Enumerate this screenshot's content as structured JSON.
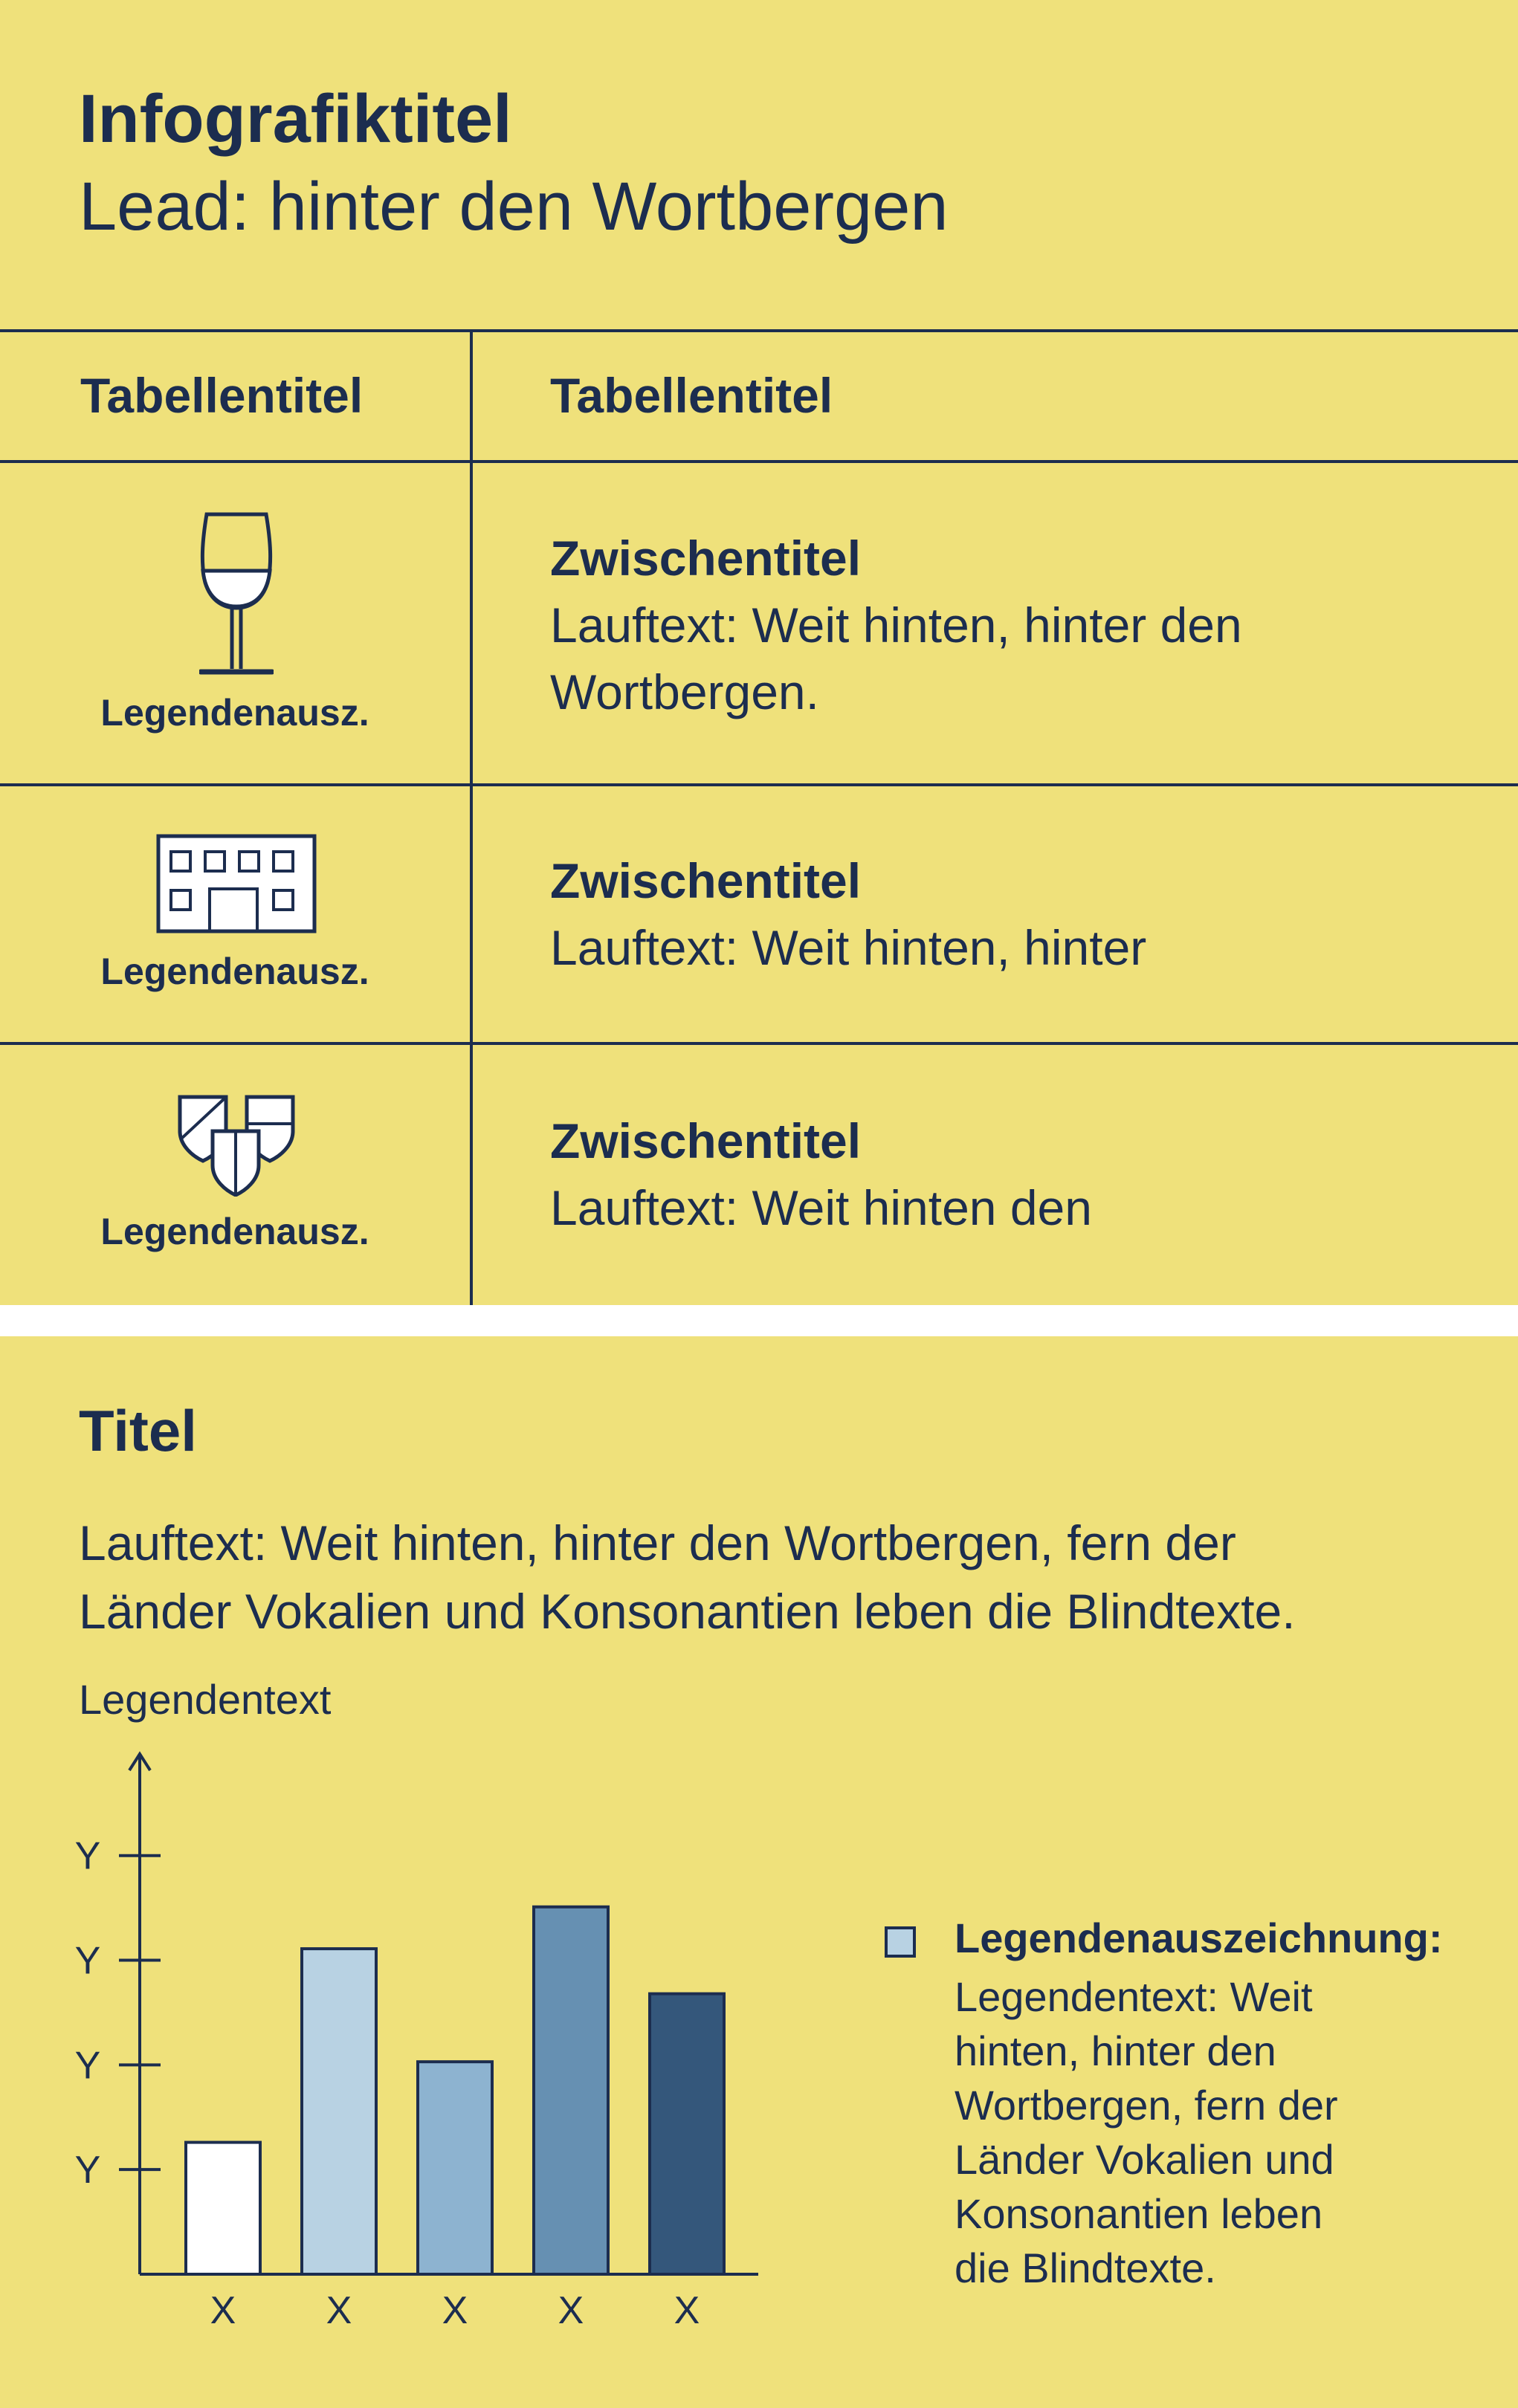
{
  "header": {
    "title": "Infografiktitel",
    "lead": "Lead: hinter den Wortbergen"
  },
  "table": {
    "columns": [
      "Tabellentitel",
      "Tabellentitel"
    ],
    "rows": [
      {
        "icon": "wine-glass-icon",
        "legend": "Legendenausz.",
        "subtitle": "Zwischentitel",
        "lines": [
          "Lauftext: Weit hinten, hinter den",
          "Wortbergen."
        ]
      },
      {
        "icon": "building-icon",
        "legend": "Legendenausz.",
        "subtitle": "Zwischentitel",
        "lines": [
          "Lauftext: Weit hinten, hinter"
        ]
      },
      {
        "icon": "shields-icon",
        "legend": "Legendenausz.",
        "subtitle": "Zwischentitel",
        "lines": [
          "Lauftext: Weit hinten den"
        ]
      }
    ]
  },
  "section2": {
    "title": "Titel",
    "lines": [
      "Lauftext: Weit hinten, hinter den Wortbergen, fern der",
      "Länder Vokalien und Konsonantien leben die Blindtexte."
    ]
  },
  "chart_data": {
    "type": "bar",
    "title": "",
    "ylabel": "Legendentext",
    "xlabel": "",
    "categories": [
      "X",
      "X",
      "X",
      "X",
      "X"
    ],
    "y_tick_labels": [
      "Y",
      "Y",
      "Y",
      "Y"
    ],
    "y_ticks": [
      1,
      2,
      3,
      4
    ],
    "values": [
      1.26,
      3.11,
      2.03,
      3.51,
      2.68
    ],
    "bar_colors": [
      "#ffffff",
      "#b8d2e3",
      "#8db3d0",
      "#6690b2",
      "#34577b"
    ],
    "ylim": [
      0,
      4.9
    ],
    "grid": false,
    "legend_position": "right"
  },
  "legend": {
    "heading": "Legendenauszeichnung:",
    "lines": [
      "Legendentext: Weit",
      "hinten, hinter den",
      "Wortbergen, fern der",
      "Länder Vokalien und",
      "Konsonantien leben",
      "die Blindtexte."
    ],
    "swatch_color": "#b8d2e3"
  },
  "colors": {
    "background": "#efe17b",
    "ink": "#1c2d4f",
    "separator": "#ffffff"
  }
}
